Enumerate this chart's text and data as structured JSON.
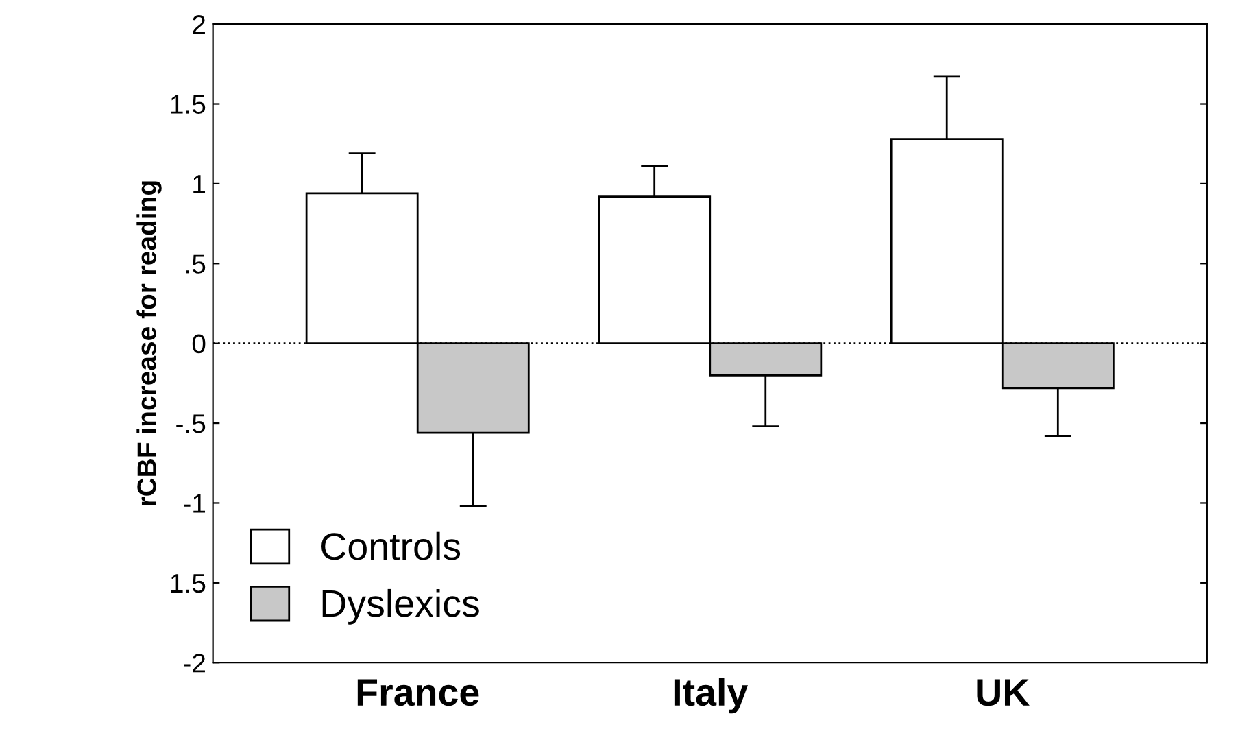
{
  "chart_data": {
    "type": "bar",
    "ylabel": "rCBF increase for reading",
    "categories": [
      "France",
      "Italy",
      "UK"
    ],
    "series": [
      {
        "name": "Controls",
        "color": "#ffffff",
        "values": [
          0.94,
          0.92,
          1.28
        ],
        "errors": [
          [
            0.94,
            1.19
          ],
          [
            0.92,
            1.11
          ],
          [
            1.28,
            1.67
          ]
        ]
      },
      {
        "name": "Dyslexics",
        "color": "#c8c8c8",
        "values": [
          -0.56,
          -0.2,
          -0.28
        ],
        "errors": [
          [
            -1.02,
            -0.56
          ],
          [
            -0.52,
            -0.2
          ],
          [
            -0.58,
            -0.28
          ]
        ]
      }
    ],
    "ylim": [
      -2,
      2
    ],
    "yticks": [
      -2,
      {
        "value": -1.5,
        "label": "1.5"
      },
      -1,
      {
        "value": -0.5,
        "label": "-.5"
      },
      0,
      {
        "value": 0.5,
        "label": ".5"
      },
      1,
      1.5,
      2
    ],
    "ref_lines": [
      {
        "axis": "y",
        "value": 0,
        "line_style": "dotted",
        "color": "#000000"
      }
    ],
    "legend": "bottom left",
    "grid": false
  }
}
